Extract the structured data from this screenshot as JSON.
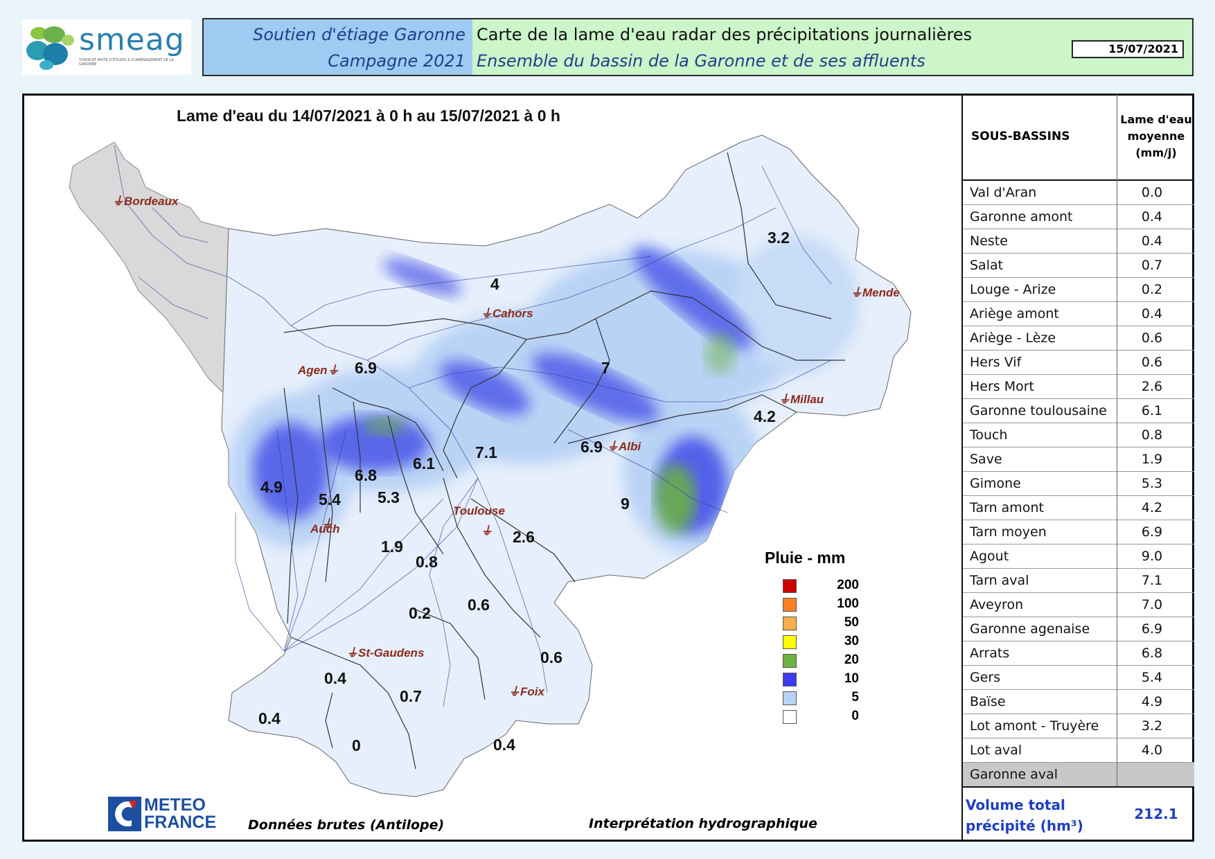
{
  "header": {
    "logo_text": "smeag",
    "logo_subtitle": "SYNDICAT MIXTE D'ÉTUDES & D'AMÉNAGEMENT DE LA GARONNE",
    "left_line1": "Soutien d'étiage Garonne",
    "left_line2": "Campagne 2021",
    "title1": "Carte de la lame d'eau radar des précipitations journalières",
    "title2": "Ensemble du bassin de la Garonne et de ses affluents",
    "date": "15/07/2021"
  },
  "map": {
    "title": "Lame d'eau du 14/07/2021 à 0 h au 15/07/2021 à 0 h",
    "cities": [
      "Bordeaux",
      "Cahors",
      "Mende",
      "Agen",
      "Millau",
      "Albi",
      "Toulouse",
      "Auch",
      "St-Gaudens",
      "Foix"
    ],
    "basin_values": [
      "3.2",
      "4",
      "6.9",
      "7",
      "4.2",
      "7.1",
      "6.9",
      "6.1",
      "6.8",
      "5.3",
      "4.9",
      "5.4",
      "9",
      "2.6",
      "1.9",
      "0.8",
      "0.6",
      "0.2",
      "0.6",
      "0.4",
      "0.7",
      "0.4",
      "0",
      "0.4"
    ],
    "legend_title": "Pluie - mm",
    "legend": [
      {
        "label": "200",
        "color": "#cc0000"
      },
      {
        "label": "100",
        "color": "#ff7f27"
      },
      {
        "label": "50",
        "color": "#f8b04a"
      },
      {
        "label": "30",
        "color": "#ffff00"
      },
      {
        "label": "20",
        "color": "#6cb33f"
      },
      {
        "label": "10",
        "color": "#3b3bf0"
      },
      {
        "label": "5",
        "color": "#b9d3f5"
      },
      {
        "label": "0",
        "color": "#ffffff"
      }
    ],
    "footer_left": "Données brutes (Antilope)",
    "footer_right": "Interprétation hydrographique",
    "meteo_line1": "METEO",
    "meteo_line2": "FRANCE"
  },
  "table": {
    "col1": "SOUS-BASSINS",
    "col2_line1": "Lame d'eau",
    "col2_line2": "moyenne",
    "col2_line3": "(mm/j)",
    "rows": [
      {
        "name": "Val d'Aran",
        "value": "0.0"
      },
      {
        "name": "Garonne amont",
        "value": "0.4"
      },
      {
        "name": "Neste",
        "value": "0.4"
      },
      {
        "name": "Salat",
        "value": "0.7"
      },
      {
        "name": "Louge - Arize",
        "value": "0.2"
      },
      {
        "name": "Ariège amont",
        "value": "0.4"
      },
      {
        "name": "Ariège - Lèze",
        "value": "0.6"
      },
      {
        "name": "Hers Vif",
        "value": "0.6"
      },
      {
        "name": "Hers Mort",
        "value": "2.6"
      },
      {
        "name": "Garonne toulousaine",
        "value": "6.1"
      },
      {
        "name": "Touch",
        "value": "0.8"
      },
      {
        "name": "Save",
        "value": "1.9"
      },
      {
        "name": "Gimone",
        "value": "5.3"
      },
      {
        "name": "Tarn amont",
        "value": "4.2"
      },
      {
        "name": "Tarn moyen",
        "value": "6.9"
      },
      {
        "name": "Agout",
        "value": "9.0"
      },
      {
        "name": "Tarn aval",
        "value": "7.1"
      },
      {
        "name": "Aveyron",
        "value": "7.0"
      },
      {
        "name": "Garonne agenaise",
        "value": "6.9"
      },
      {
        "name": "Arrats",
        "value": "6.8"
      },
      {
        "name": "Gers",
        "value": "5.4"
      },
      {
        "name": "Baïse",
        "value": "4.9"
      },
      {
        "name": "Lot amont - Truyère",
        "value": "3.2"
      },
      {
        "name": "Lot aval",
        "value": "4.0"
      },
      {
        "name": "Garonne aval",
        "value": ""
      }
    ],
    "total_label_1": "Volume total",
    "total_label_2": "précipité (hm³)",
    "total_value": "212.1"
  }
}
